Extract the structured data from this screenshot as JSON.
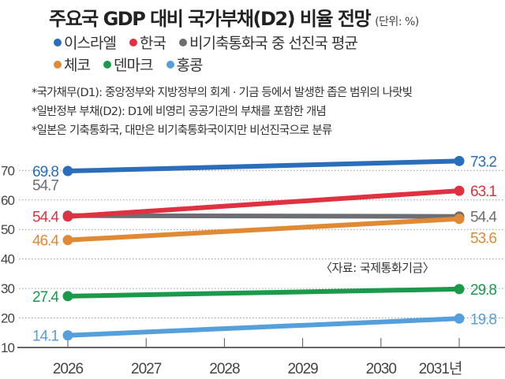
{
  "header": {
    "title": "주요국 GDP 대비 국가부채(D2) 비율 전망",
    "unit": "(단위: %)"
  },
  "legend": [
    {
      "label": "이스라엘",
      "color": "#2a6ebb"
    },
    {
      "label": "한국",
      "color": "#e03140"
    },
    {
      "label": "비기축통화국 중 선진국 평균",
      "color": "#6d6e73"
    },
    {
      "label": "체코",
      "color": "#e08a35"
    },
    {
      "label": "덴마크",
      "color": "#1b9a4c"
    },
    {
      "label": "홍콩",
      "color": "#559fdc"
    }
  ],
  "notes": [
    "*국가채무(D1): 중앙정부와 지방정부의 회계 · 기금 등에서 발생한 좁은 범위의 나랏빚",
    "*일반정부 부채(D2): D1에 비영리 공공기관의 부채를 포함한 개념",
    "*일본은 기축통화국, 대만은 비기축통화국이지만 비선진국으로 분류"
  ],
  "source": "〈자료: 국제통화기금〉",
  "chart_data": {
    "type": "line",
    "title": "주요국 GDP 대비 국가부채(D2) 비율 전망",
    "unit": "%",
    "xlabel": "",
    "ylabel": "",
    "x": [
      "2026",
      "2027",
      "2028",
      "2029",
      "2030",
      "2031년"
    ],
    "yticks": [
      "10",
      "20",
      "30",
      "40",
      "50",
      "60",
      "70"
    ],
    "ylim": [
      10,
      75
    ],
    "grid": true,
    "legend_position": "top-left",
    "series": [
      {
        "name": "이스라엘",
        "color": "#2a6ebb",
        "points": [
          {
            "x": 2026,
            "y": 69.8,
            "label": "69.8"
          },
          {
            "x": 2031,
            "y": 73.2,
            "label": "73.2"
          }
        ]
      },
      {
        "name": "한국",
        "color": "#e03140",
        "points": [
          {
            "x": 2026,
            "y": 54.4,
            "label": "54.4"
          },
          {
            "x": 2031,
            "y": 63.1,
            "label": "63.1"
          }
        ]
      },
      {
        "name": "비기축통화국 중 선진국 평균",
        "color": "#6d6e73",
        "points": [
          {
            "x": 2026,
            "y": 54.7,
            "label": "54.7"
          },
          {
            "x": 2031,
            "y": 54.4,
            "label": "54.4"
          }
        ]
      },
      {
        "name": "체코",
        "color": "#e08a35",
        "points": [
          {
            "x": 2026,
            "y": 46.4,
            "label": "46.4"
          },
          {
            "x": 2031,
            "y": 53.6,
            "label": "53.6"
          }
        ]
      },
      {
        "name": "덴마크",
        "color": "#1b9a4c",
        "points": [
          {
            "x": 2026,
            "y": 27.4,
            "label": "27.4"
          },
          {
            "x": 2031,
            "y": 29.8,
            "label": "29.8"
          }
        ]
      },
      {
        "name": "홍콩",
        "color": "#559fdc",
        "points": [
          {
            "x": 2026,
            "y": 14.1,
            "label": "14.1"
          },
          {
            "x": 2031,
            "y": 19.8,
            "label": "19.8"
          }
        ]
      }
    ]
  }
}
